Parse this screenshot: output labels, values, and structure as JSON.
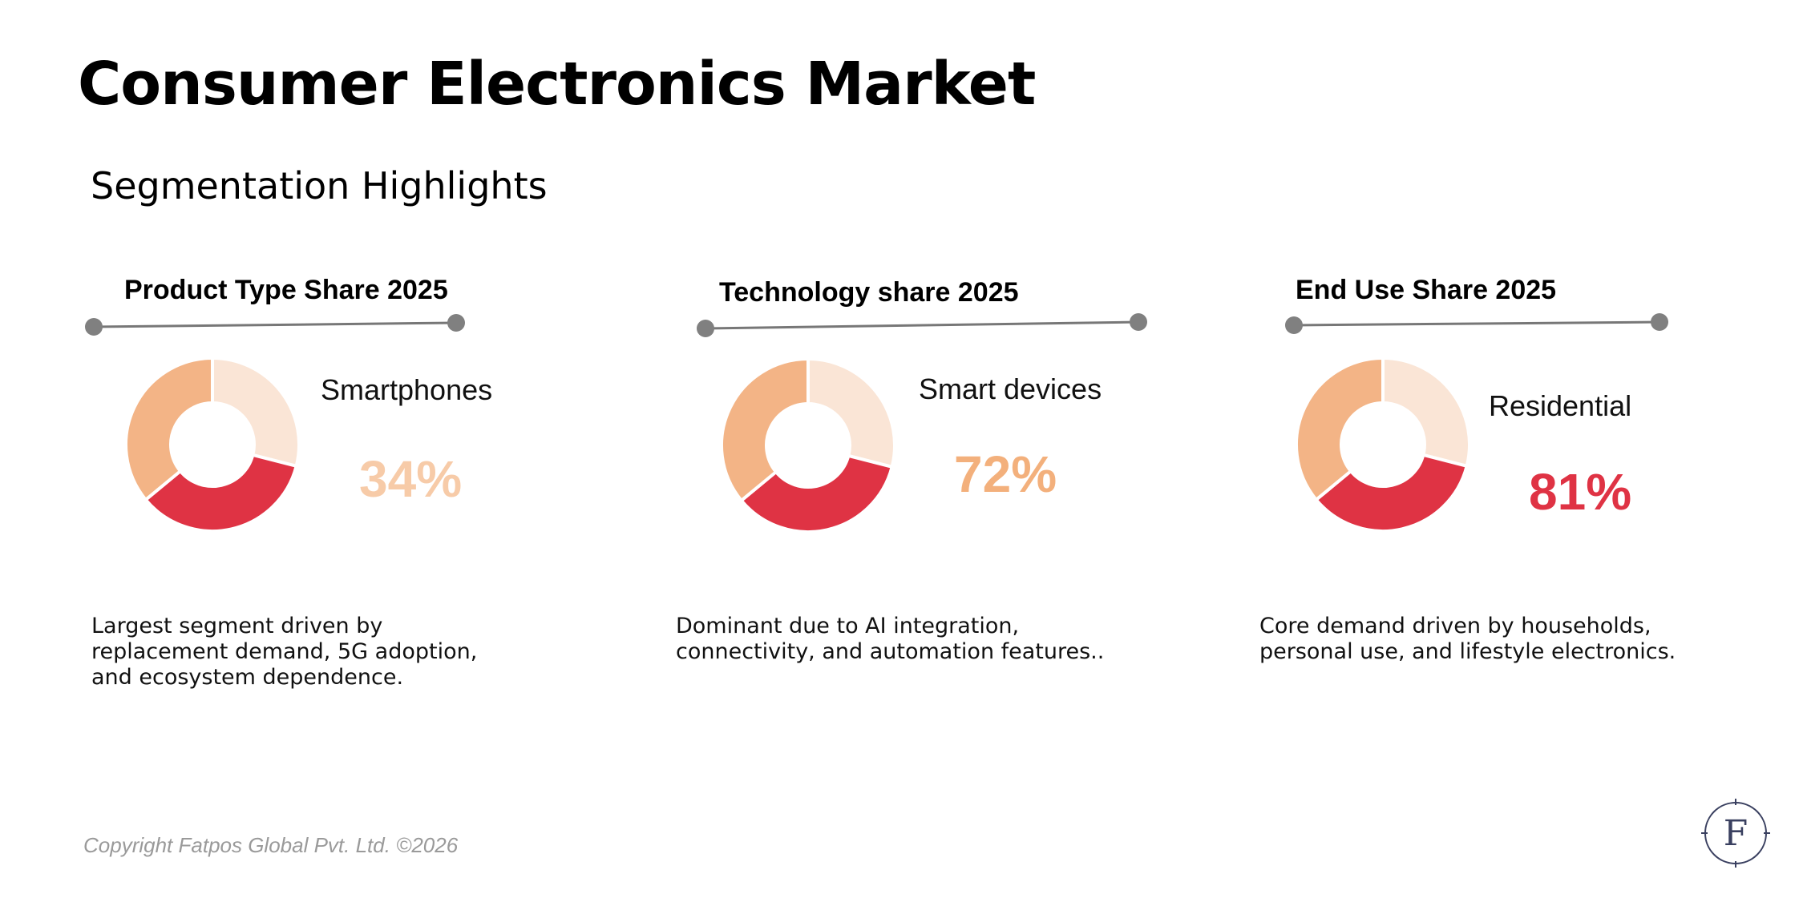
{
  "page": {
    "title": "Consumer Electronics Market",
    "subtitle": "Segmentation Highlights",
    "copyright": "Copyright Fatpos Global Pvt. Ltd. ©2026",
    "logo_letter": "F"
  },
  "colors": {
    "light_peach": "#fae5d6",
    "red": "#df3344",
    "orange": "#f3b486",
    "value_peach_light": "#f7cba8",
    "value_orange": "#f3b07c",
    "value_red": "#df3344",
    "rule": "#777777",
    "logo": "#3a4060"
  },
  "chart_data": [
    {
      "type": "pie",
      "title": "Product Type Share 2025",
      "donut": true,
      "slices": [
        {
          "color": "#fae5d6",
          "value": 29
        },
        {
          "color": "#df3344",
          "value": 35
        },
        {
          "color": "#f3b486",
          "value": 36
        }
      ],
      "highlight_label": "Smartphones",
      "highlight_value": "34%",
      "highlight_color": "#f7cba8",
      "description": [
        "Largest segment driven by",
        "replacement demand, 5G adoption,",
        "and ecosystem dependence."
      ]
    },
    {
      "type": "pie",
      "title": "Technology share 2025",
      "donut": true,
      "slices": [
        {
          "color": "#fae5d6",
          "value": 29
        },
        {
          "color": "#df3344",
          "value": 35
        },
        {
          "color": "#f3b486",
          "value": 36
        }
      ],
      "highlight_label": "Smart devices",
      "highlight_value": "72%",
      "highlight_color": "#f3b07c",
      "description": [
        "Dominant due to AI integration,",
        "connectivity, and automation features.."
      ]
    },
    {
      "type": "pie",
      "title": "End Use Share 2025",
      "donut": true,
      "slices": [
        {
          "color": "#fae5d6",
          "value": 29
        },
        {
          "color": "#df3344",
          "value": 35
        },
        {
          "color": "#f3b486",
          "value": 36
        }
      ],
      "highlight_label": "Residential",
      "highlight_value": "81%",
      "highlight_color": "#df3344",
      "description": [
        "Core demand driven by households,",
        "personal use, and lifestyle electronics."
      ]
    }
  ]
}
